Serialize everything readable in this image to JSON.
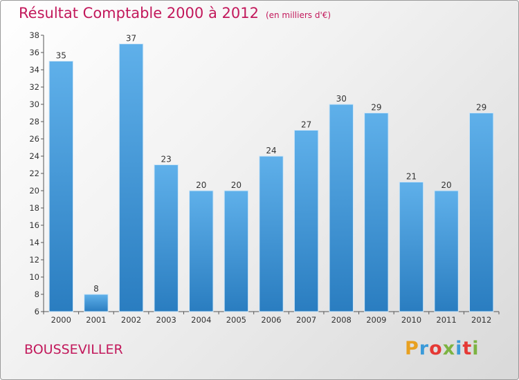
{
  "header": {
    "title": "Résultat Comptable 2000 à 2012",
    "subtitle": "(en milliers d'€)"
  },
  "footer": {
    "commune": "BOUSSEVILLER",
    "brand": "Proxiti",
    "brand_colors": [
      "#e8a020",
      "#3a9ad9",
      "#e53935",
      "#7cb342",
      "#3a9ad9",
      "#e53935",
      "#7cb342"
    ]
  },
  "colors": {
    "bar_top": "#5fb0ea",
    "bar_bottom": "#2a7dc0",
    "title": "#c2185b"
  },
  "chart_data": {
    "type": "bar",
    "title": "Résultat Comptable 2000 à 2012",
    "subtitle": "(en milliers d'€)",
    "xlabel": "",
    "ylabel": "",
    "categories": [
      "2000",
      "2001",
      "2002",
      "2003",
      "2004",
      "2005",
      "2006",
      "2007",
      "2008",
      "2009",
      "2010",
      "2011",
      "2012"
    ],
    "values": [
      35,
      8,
      37,
      23,
      20,
      20,
      24,
      27,
      30,
      29,
      21,
      20,
      29
    ],
    "ylim": [
      6,
      38
    ],
    "yticks": [
      6,
      8,
      10,
      12,
      14,
      16,
      18,
      20,
      22,
      24,
      26,
      28,
      30,
      32,
      34,
      36,
      38
    ],
    "grid": false,
    "data_labels": true
  }
}
